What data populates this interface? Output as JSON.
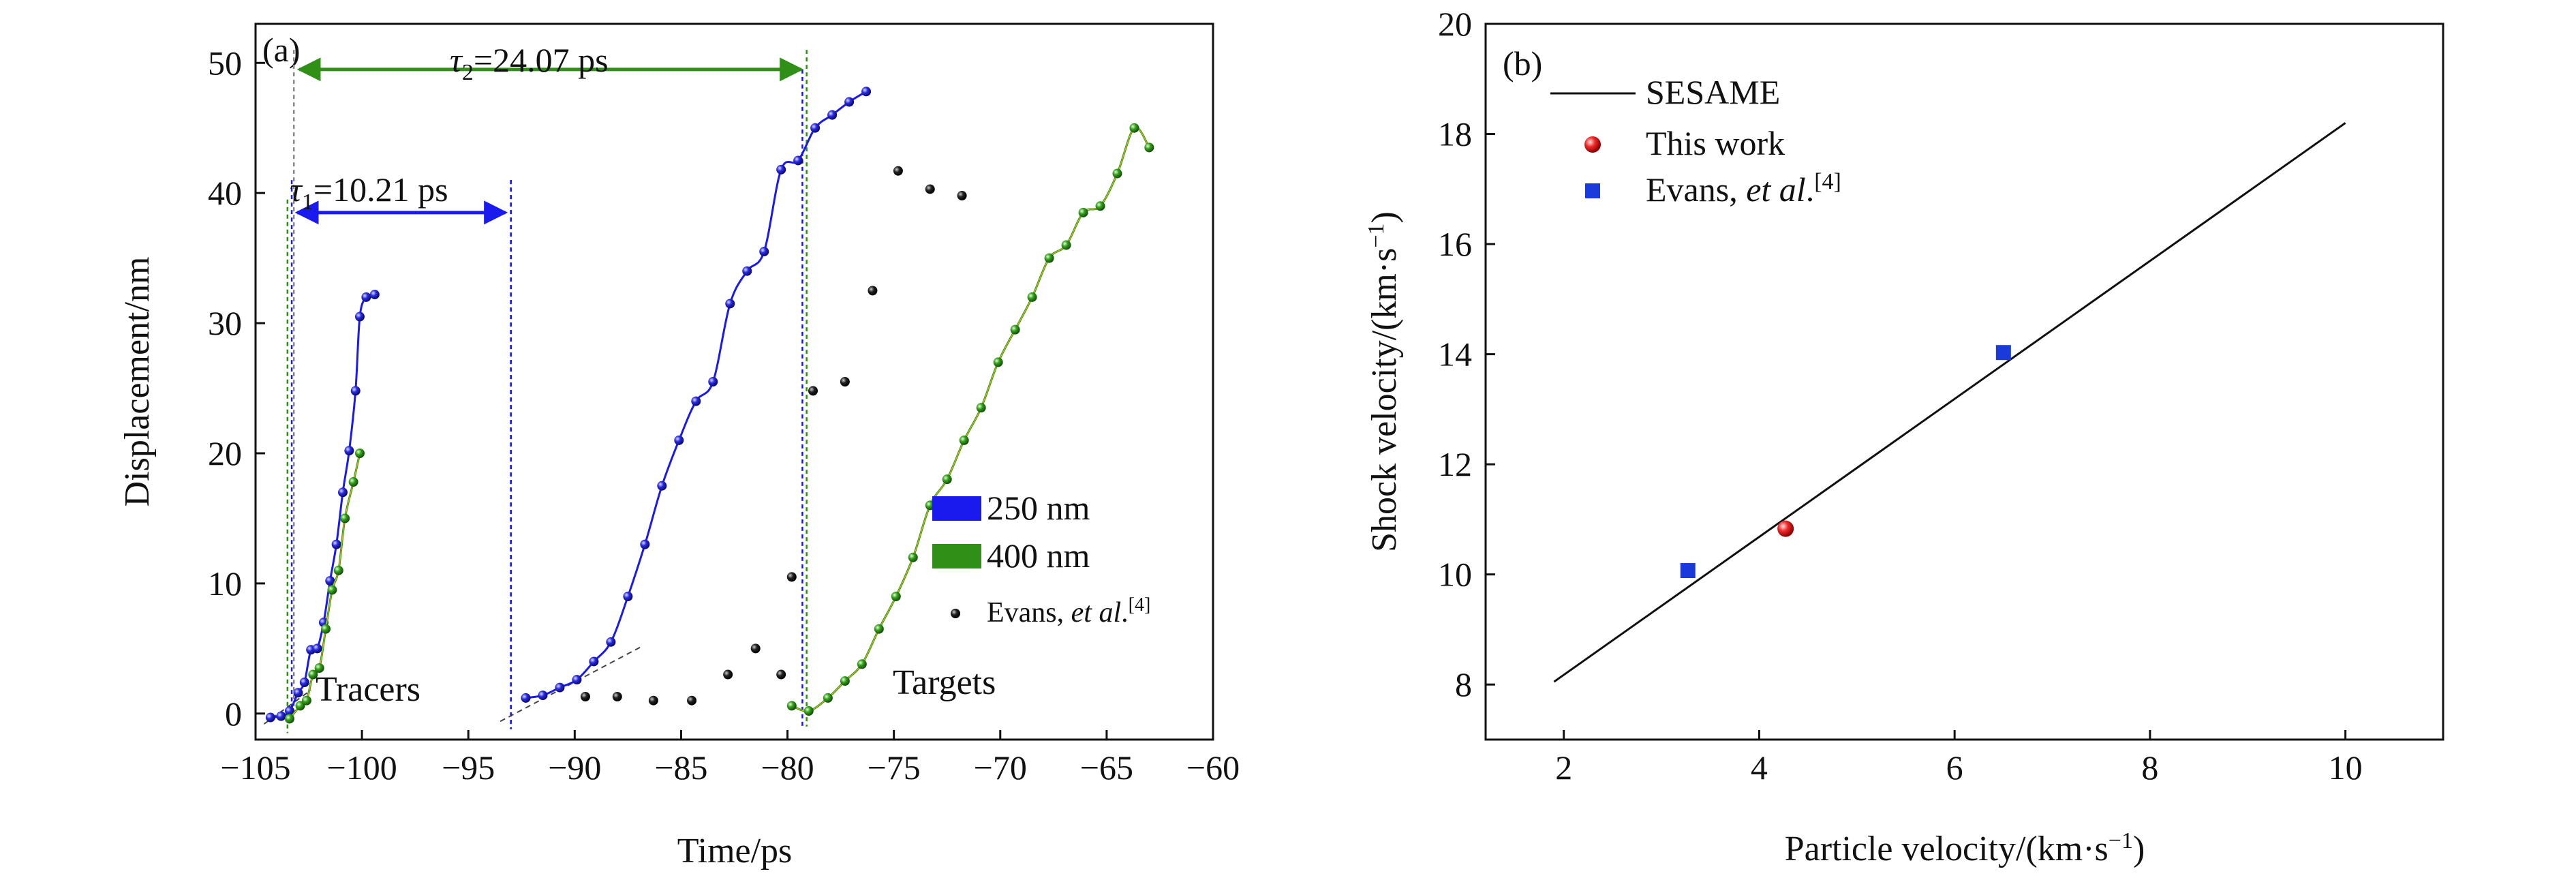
{
  "chart_data": [
    {
      "panel_label": "(a)",
      "type": "scatter",
      "xlabel": "Time/ps",
      "ylabel": "Displacement/nm",
      "xlim": [
        -105,
        -60
      ],
      "ylim": [
        -2,
        53
      ],
      "xticks": [
        -105,
        -100,
        -95,
        -90,
        -85,
        -80,
        -75,
        -70,
        -65,
        -60
      ],
      "yticks": [
        0,
        10,
        20,
        30,
        40,
        50
      ],
      "grid": false,
      "legend_position": "center-right",
      "legend": [
        {
          "label": "250 nm",
          "color": "#1a1aee",
          "marker": "bar"
        },
        {
          "label": "400 nm",
          "color": "#2f8f16",
          "marker": "bar"
        },
        {
          "label": "Evans, ",
          "label_italic": "et al",
          "label_tail": ".",
          "label_sup": "[4]",
          "color": "#111111",
          "marker": "dot"
        }
      ],
      "annotations": {
        "tau1": {
          "sym": "τ",
          "sub": "1",
          "text": "=10.21 ps",
          "from": -103.3,
          "to": -93.0,
          "y": 38.5,
          "color": "#1a1aee"
        },
        "tau2": {
          "sym": "τ",
          "sub": "2",
          "text": "=24.07 ps",
          "from": -103.2,
          "to": -79.1,
          "y": 49.5,
          "color": "#2f8f16"
        },
        "tracers_label": "Tracers",
        "targets_label": "Targets"
      },
      "series": [
        {
          "name": "250 nm",
          "color": "#1a1aee",
          "x": [
            -104.3,
            -103.8,
            -103.4,
            -103.0,
            -102.7,
            -102.4,
            -102.1,
            -101.8,
            -101.5,
            -101.2,
            -100.9,
            -100.6,
            -100.3,
            -100.1,
            -99.8,
            -99.4
          ],
          "y": [
            -0.3,
            -0.2,
            0.2,
            1.6,
            2.4,
            4.9,
            5.0,
            7.0,
            10.2,
            13.0,
            17.0,
            20.2,
            24.8,
            30.5,
            32.0,
            32.2
          ]
        },
        {
          "name": "400 nm",
          "color": "#2f8f16",
          "x": [
            -103.4,
            -102.9,
            -102.6,
            -102.3,
            -102.0,
            -101.7,
            -101.4,
            -101.1,
            -100.8,
            -100.4,
            -100.1
          ],
          "y": [
            -0.4,
            0.6,
            1.0,
            3.0,
            3.5,
            6.5,
            9.5,
            11.0,
            15.0,
            17.8,
            20.0
          ]
        },
        {
          "name": "250 nm",
          "color": "#1a1aee",
          "x": [
            -92.3,
            -91.5,
            -90.7,
            -89.9,
            -89.1,
            -88.3,
            -87.5,
            -86.7,
            -85.9,
            -85.1,
            -84.3,
            -83.5,
            -82.7,
            -81.9,
            -81.1,
            -80.3,
            -79.5,
            -78.7,
            -77.9,
            -77.1,
            -76.3
          ],
          "y": [
            1.2,
            1.4,
            2.0,
            2.6,
            4.0,
            5.5,
            9.0,
            13.0,
            17.5,
            21.0,
            24.0,
            25.5,
            31.5,
            34.0,
            35.5,
            41.8,
            42.5,
            45.0,
            46.0,
            47.0,
            47.8
          ]
        },
        {
          "name": "400 nm",
          "color": "#2f8f16",
          "x": [
            -79.8,
            -79.0,
            -78.1,
            -77.3,
            -76.5,
            -75.7,
            -74.9,
            -74.1,
            -73.3,
            -72.5,
            -71.7,
            -70.9,
            -70.1,
            -69.3,
            -68.5,
            -67.7,
            -66.9,
            -66.1,
            -65.3,
            -64.5,
            -63.7,
            -63.0
          ],
          "y": [
            0.6,
            0.2,
            1.2,
            2.5,
            3.8,
            6.5,
            9.0,
            12.0,
            16.0,
            18.0,
            21.0,
            23.5,
            27.0,
            29.5,
            32.0,
            35.0,
            36.0,
            38.5,
            39.0,
            41.5,
            45.0,
            43.5
          ]
        },
        {
          "name": "Evans, et al.[4]",
          "color": "#111111",
          "x": [
            -89.5,
            -88.0,
            -86.3,
            -84.5,
            -82.8,
            -81.5,
            -80.3,
            -79.8,
            -78.8,
            -77.3,
            -76.0,
            -74.8,
            -73.3,
            -71.8
          ],
          "y": [
            1.3,
            1.3,
            1.0,
            1.0,
            3.0,
            5.0,
            3.0,
            10.5,
            24.8,
            25.5,
            32.5,
            41.7,
            40.3,
            39.8
          ]
        }
      ]
    },
    {
      "panel_label": "(b)",
      "type": "scatter",
      "xlabel": "Particle velocity/(km·s",
      "xlabel_sup": "−1",
      "xlabel_tail": ")",
      "ylabel": "Shock velocity/(km·s",
      "ylabel_sup": "−1",
      "ylabel_tail": ")",
      "xlim": [
        1.2,
        11.0
      ],
      "ylim": [
        7.0,
        20.0
      ],
      "xticks": [
        2,
        4,
        6,
        8,
        10
      ],
      "yticks": [
        8,
        10,
        12,
        14,
        16,
        18,
        20
      ],
      "grid": false,
      "legend_position": "top-left",
      "legend": [
        {
          "label": "SESAME",
          "color": "#111111",
          "marker": "line"
        },
        {
          "label": "This work",
          "color": "#ee2222",
          "marker": "circle"
        },
        {
          "label": "Evans, ",
          "label_italic": "et al",
          "label_tail": ".",
          "label_sup": "[4]",
          "color": "#1a3adc",
          "marker": "square"
        }
      ],
      "series": [
        {
          "name": "SESAME",
          "type": "line",
          "color": "#111111",
          "x": [
            1.9,
            10.0
          ],
          "y": [
            8.05,
            18.2
          ]
        },
        {
          "name": "This work",
          "type": "scatter",
          "color": "#ee2222",
          "x": [
            4.27
          ],
          "y": [
            10.83
          ]
        },
        {
          "name": "Evans, et al.[4]",
          "type": "scatter",
          "color": "#1a3adc",
          "x": [
            3.27,
            6.5
          ],
          "y": [
            10.07,
            14.03
          ]
        }
      ]
    }
  ]
}
